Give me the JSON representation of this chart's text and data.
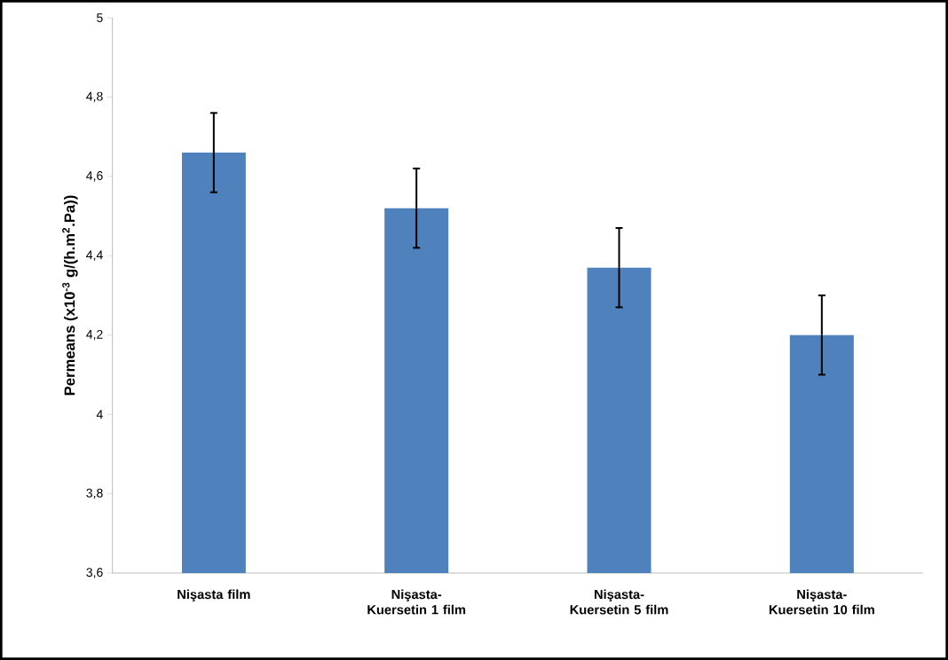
{
  "chart_data": {
    "type": "bar",
    "ylabel": "Permeans (x10$^{-3}$ g/(h.m$^{2}$.Pa))",
    "categories": [
      "Nişasta film",
      "Nişasta-Kuersetin  1 film",
      "Nişasta-Kuersetin  5 film",
      "Nişasta-Kuersetin  10 film"
    ],
    "values": [
      4.66,
      4.52,
      4.37,
      4.2
    ],
    "errors": [
      0.1,
      0.1,
      0.1,
      0.1
    ],
    "color": "#4f81bd",
    "ylim": [
      3.6,
      5
    ],
    "yticks": [
      {
        "value": 3.6,
        "label": "3,6"
      },
      {
        "value": 3.8,
        "label": "3,8"
      },
      4,
      {
        "value": 4.2,
        "label": "4,2"
      },
      {
        "value": 4.4,
        "label": "4,4"
      },
      {
        "value": 4.6,
        "label": "4,6"
      },
      {
        "value": 4.8,
        "label": "4,8"
      },
      5
    ]
  }
}
